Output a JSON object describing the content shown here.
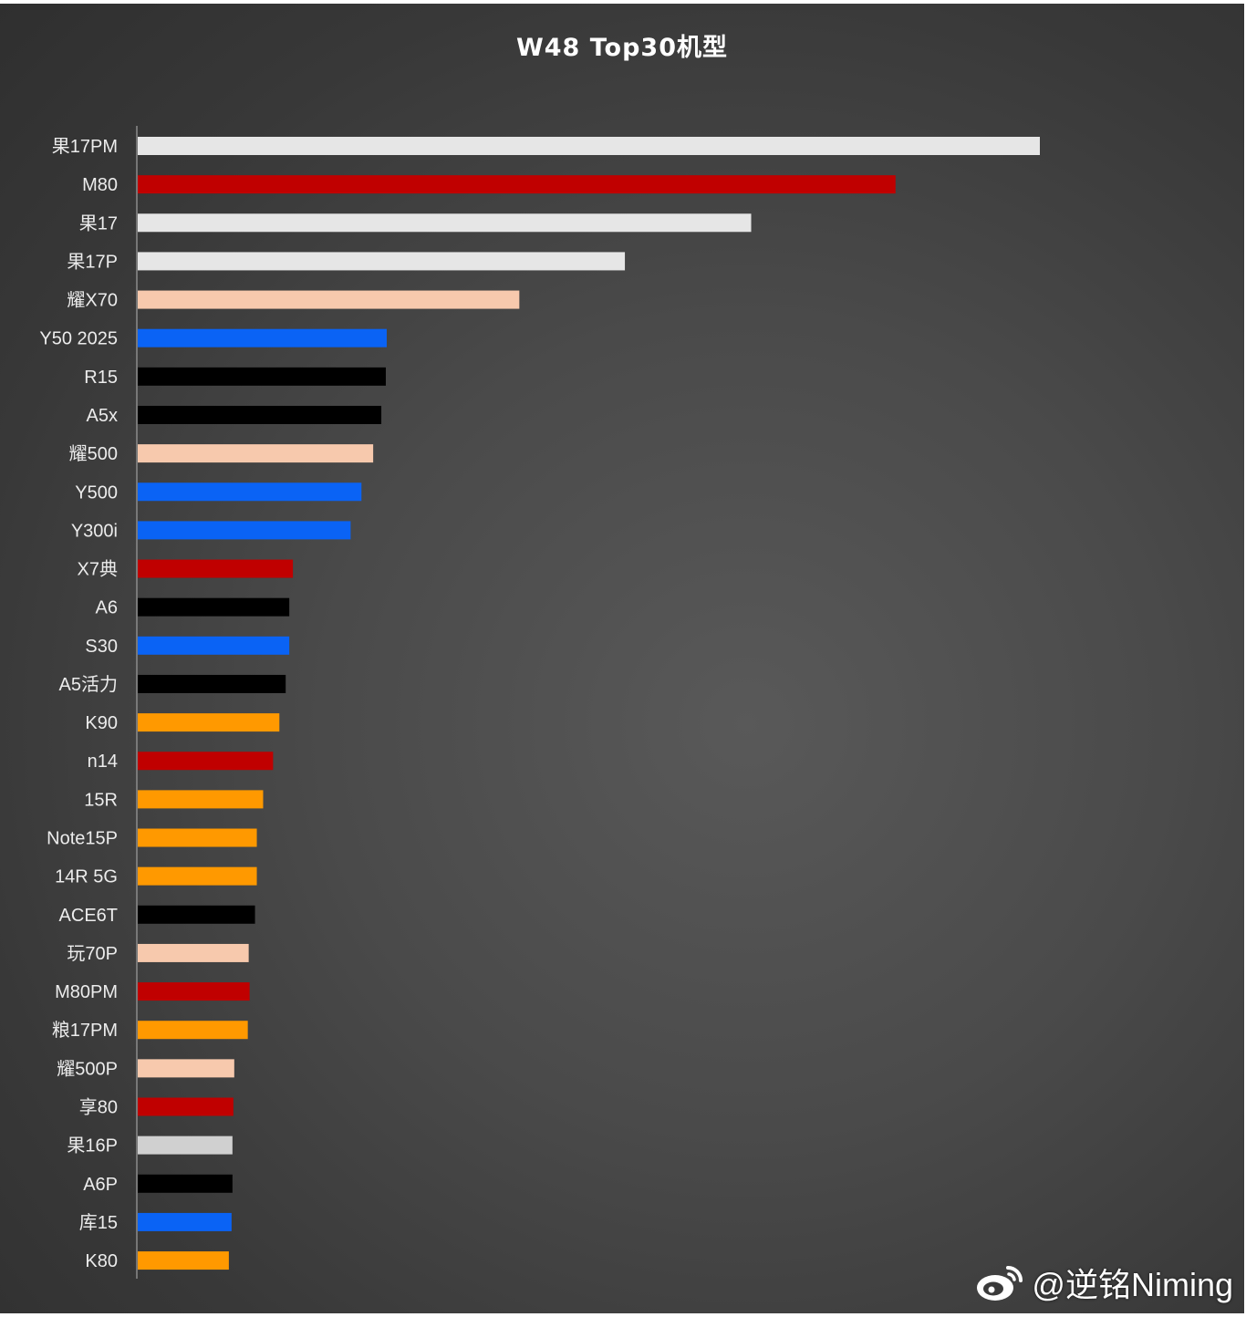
{
  "chart_data": {
    "type": "bar",
    "orientation": "horizontal",
    "title": "W48 Top30机型",
    "xlabel": "",
    "ylabel": "",
    "grid": false,
    "legend": "none",
    "xlim": [
      0,
      100
    ],
    "categories": [
      "果17PM",
      "M80",
      "果17",
      "果17P",
      "耀X70",
      "Y50 2025",
      "R15",
      "A5x",
      "耀500",
      "Y500",
      "Y300i",
      "X7典",
      "A6",
      "S30",
      "A5活力",
      "K90",
      "n14",
      "15R",
      "Note15P",
      "14R 5G",
      "ACE6T",
      "玩70P",
      "M80PM",
      "粮17PM",
      "耀500P",
      "享80",
      "果16P",
      "A6P",
      "库15",
      "K80"
    ],
    "values": [
      100,
      84,
      68,
      54,
      42.3,
      27.6,
      27.5,
      27.0,
      26.1,
      24.8,
      23.6,
      17.2,
      16.8,
      16.8,
      16.4,
      15.7,
      15.0,
      13.9,
      13.2,
      13.2,
      13.0,
      12.3,
      12.4,
      12.2,
      10.7,
      10.6,
      10.5,
      10.5,
      10.4,
      10.1
    ],
    "colors": [
      "#e6e6e6",
      "#c00000",
      "#e6e6e6",
      "#e6e6e6",
      "#f7c9ad",
      "#0a63f5",
      "#000000",
      "#000000",
      "#f7c9ad",
      "#0a63f5",
      "#0a63f5",
      "#c00000",
      "#000000",
      "#0a63f5",
      "#000000",
      "#ff9900",
      "#c00000",
      "#ff9900",
      "#ff9900",
      "#ff9900",
      "#000000",
      "#f7c9ad",
      "#c00000",
      "#ff9900",
      "#f7c9ad",
      "#c00000",
      "#d0d0d0",
      "#000000",
      "#0a63f5",
      "#ff9900"
    ]
  },
  "watermark": {
    "text": "@逆铭Niming",
    "icon": "weibo-icon"
  }
}
